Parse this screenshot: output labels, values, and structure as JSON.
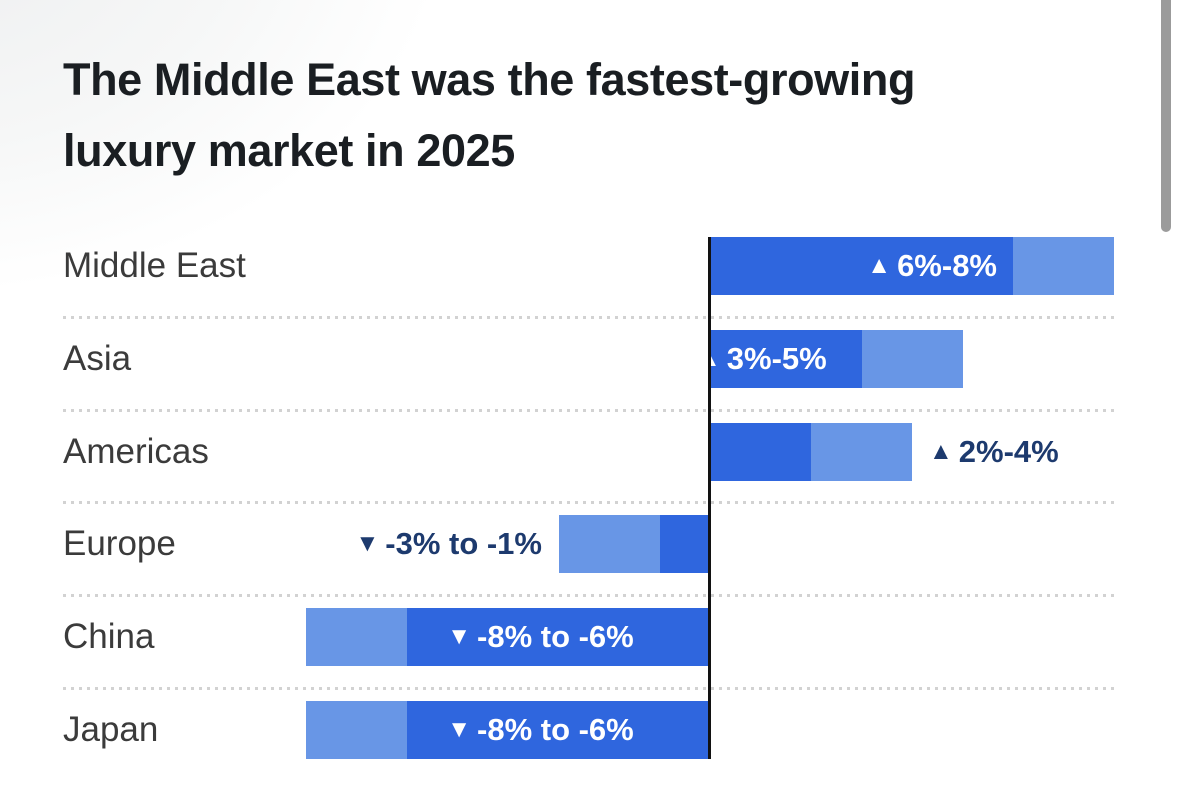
{
  "title": {
    "line1": "The Middle East was the fastest-growing",
    "line2": "luxury market in 2025",
    "full": "The Middle East was the fastest-growing luxury market in 2025"
  },
  "chart_data": {
    "type": "bar",
    "variant": "horizontal-diverging-range",
    "title": "The Middle East was the fastest-growing luxury market in 2025",
    "unit": "percent growth range, 2025",
    "x_axis": {
      "zero_line": true,
      "range": [
        -8,
        9.3
      ],
      "ticks_visible": false,
      "gridlines": false
    },
    "legend": null,
    "categories": [
      "Middle East",
      "Asia",
      "Americas",
      "Europe",
      "China",
      "Japan"
    ],
    "rows": [
      {
        "label": "Middle East",
        "range_near": 6,
        "range_far": 8,
        "direction": "up",
        "arrow": "▲",
        "value_text": "6%-8%",
        "value_placement": "inside-end"
      },
      {
        "label": "Asia",
        "range_near": 3,
        "range_far": 5,
        "direction": "up",
        "arrow": "▲",
        "value_text": "3%-5%",
        "value_placement": "inside-start"
      },
      {
        "label": "Americas",
        "range_near": 2,
        "range_far": 4,
        "direction": "up",
        "arrow": "▲",
        "value_text": "2%-4%",
        "value_placement": "outside-right"
      },
      {
        "label": "Europe",
        "range_near": -1,
        "range_far": -3,
        "direction": "down",
        "arrow": "▼",
        "value_text": "-3% to -1%",
        "value_placement": "outside-left"
      },
      {
        "label": "China",
        "range_near": -6,
        "range_far": -8,
        "direction": "down",
        "arrow": "▼",
        "value_text": "-8% to -6%",
        "value_placement": "inside-center"
      },
      {
        "label": "Japan",
        "range_near": -6,
        "range_far": -8,
        "direction": "down",
        "arrow": "▼",
        "value_text": "-8% to -6%",
        "value_placement": "inside-center"
      }
    ],
    "colors": {
      "bar_solid": "#2f66de",
      "bar_light": "#6896e6",
      "value_navy": "#1d3a6e",
      "value_white": "#ffffff",
      "axis": "#121212",
      "row_label": "#3b3b3b",
      "separator": "#d2d2d2",
      "title": "#1a1e22",
      "scrollbar": "#9b9b9b"
    }
  }
}
